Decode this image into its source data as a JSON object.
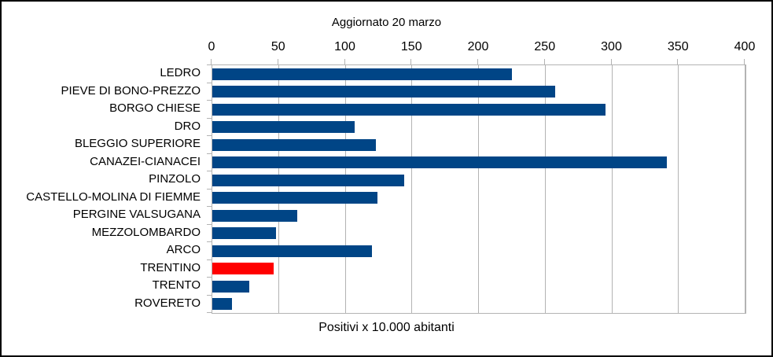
{
  "chart_data": {
    "type": "bar",
    "orientation": "horizontal",
    "title": "Aggiornato 20 marzo",
    "xlabel": "Positivi x 10.000 abitanti",
    "xlim": [
      0,
      400
    ],
    "x_ticks": [
      0,
      50,
      100,
      150,
      200,
      250,
      300,
      350,
      400
    ],
    "grid": "vertical",
    "legend": "none",
    "categories": [
      "LEDRO",
      "PIEVE DI BONO-PREZZO",
      "BORGO CHIESE",
      "DRO",
      "BLEGGIO SUPERIORE",
      "CANAZEI-CIANACEI",
      "PINZOLO",
      "CASTELLO-MOLINA DI FIEMME",
      "PERGINE VALSUGANA",
      "MEZZOLOMBARDO",
      "ARCO",
      "TRENTINO",
      "TRENTO",
      "ROVERETO"
    ],
    "values": [
      225,
      257,
      295,
      107,
      123,
      341,
      144,
      124,
      64,
      48,
      120,
      46,
      28,
      15
    ],
    "highlight_category": "TRENTINO",
    "colors": {
      "bar": "#004586",
      "highlight": "#ff0000",
      "grid": "#b3b3b3",
      "text": "#000000"
    }
  }
}
